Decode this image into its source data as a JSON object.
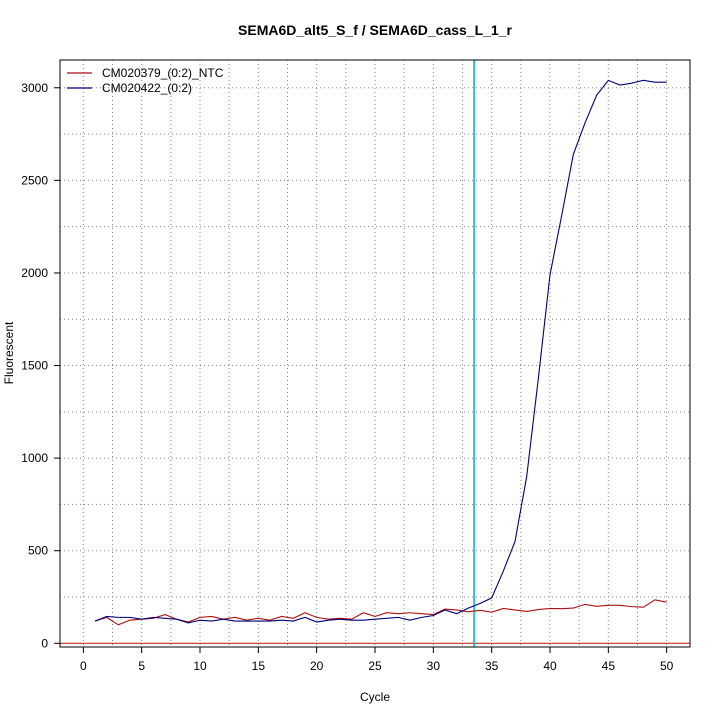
{
  "chart_data": {
    "type": "line",
    "title": "SEMA6D_alt5_S_f / SEMA6D_cass_L_1_r",
    "xlabel": "Cycle",
    "ylabel": "Fluorescent",
    "xlim": [
      -2,
      52
    ],
    "ylim": [
      -20,
      3150
    ],
    "x_ticks": [
      0,
      5,
      10,
      15,
      20,
      25,
      30,
      35,
      40,
      45,
      50
    ],
    "y_ticks": [
      0,
      500,
      1000,
      1500,
      2000,
      2500,
      3000
    ],
    "x_minor_grid": [
      2.5,
      7.5,
      12.5,
      17.5,
      22.5,
      27.5,
      32.5,
      37.5,
      42.5,
      47.5
    ],
    "y_minor_grid": [
      250,
      750,
      1250,
      1750,
      2250,
      2750
    ],
    "grid": true,
    "legend_position": "top-left",
    "threshold": {
      "y": 0,
      "color": "#cc3333"
    },
    "cycle_marker": {
      "x": 33.5,
      "color": "#33bbcc"
    },
    "x": [
      1,
      2,
      3,
      4,
      5,
      6,
      7,
      8,
      9,
      10,
      11,
      12,
      13,
      14,
      15,
      16,
      17,
      18,
      19,
      20,
      21,
      22,
      23,
      24,
      25,
      26,
      27,
      28,
      29,
      30,
      31,
      32,
      33,
      34,
      35,
      36,
      37,
      38,
      39,
      40,
      41,
      42,
      43,
      44,
      45,
      46,
      47,
      48,
      49,
      50
    ],
    "series": [
      {
        "name": "CM020379_(0:2)_NTC",
        "color": "#aa1111",
        "values": [
          120,
          140,
          100,
          125,
          130,
          135,
          155,
          130,
          115,
          140,
          145,
          130,
          140,
          125,
          135,
          125,
          145,
          135,
          165,
          140,
          130,
          135,
          130,
          165,
          145,
          165,
          160,
          165,
          160,
          155,
          185,
          180,
          170,
          178,
          168,
          188,
          180,
          172,
          182,
          188,
          187,
          190,
          210,
          200,
          205,
          205,
          198,
          195,
          235,
          222
        ]
      },
      {
        "name": "CM020422_(0:2)",
        "color": "#000077",
        "values": [
          120,
          145,
          140,
          140,
          130,
          140,
          135,
          130,
          110,
          125,
          120,
          130,
          120,
          120,
          120,
          120,
          125,
          120,
          140,
          115,
          125,
          130,
          125,
          125,
          130,
          135,
          140,
          125,
          140,
          150,
          180,
          160,
          190,
          215,
          245,
          390,
          550,
          900,
          1430,
          1990,
          2310,
          2640,
          2810,
          2960,
          3040,
          3015,
          3025,
          3040,
          3030,
          3030
        ]
      }
    ]
  }
}
